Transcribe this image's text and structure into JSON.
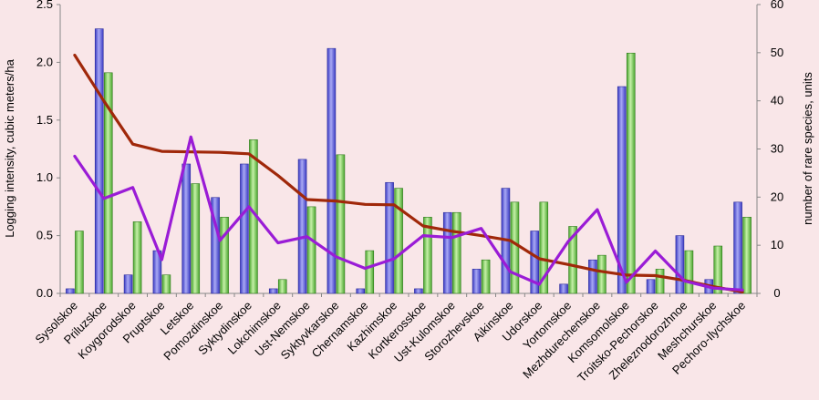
{
  "chart_data": {
    "type": "bar",
    "title": "",
    "xlabel": "",
    "ylabel": "Logging intensity, cubic meters/ha",
    "y2label": "number of rare species, units",
    "ylim": [
      0,
      2.5
    ],
    "y2lim": [
      0,
      60
    ],
    "yticks": [
      "0.0",
      "0.5",
      "1.0",
      "1.5",
      "2.0",
      "2.5"
    ],
    "y2ticks": [
      "0",
      "10",
      "20",
      "30",
      "40",
      "50",
      "60"
    ],
    "grid": false,
    "legend": "none",
    "categories": [
      "Sysolskoe",
      "Priluzskoe",
      "Koygorodskoe",
      "Pruptskoe",
      "Letskoe",
      "Pomozdinskoe",
      "Syktydinskoe",
      "Lokchimskoe",
      "Ust-Nemskoe",
      "Syktyvkarskoe",
      "Chernamskoe",
      "Kazhimskoe",
      "Kortkerosskoe",
      "Ust-Kulomskoe",
      "Storozhevskoe",
      "Aikinskoe",
      "Udorskoe",
      "Yortomskoe",
      "Mezhdurechenskoe",
      "Komsomolskoe",
      "Troitsko-Pechorskoe",
      "Zheleznodorozhnoe",
      "Meshchurskoe",
      "Pechoro-Ilychskoe"
    ],
    "series": [
      {
        "kind": "bar",
        "axis": "left",
        "color": "#5b5bd6",
        "values": [
          0.04,
          2.29,
          0.16,
          0.37,
          1.12,
          0.83,
          1.12,
          0.04,
          1.16,
          2.12,
          0.04,
          0.96,
          0.04,
          0.7,
          0.21,
          0.91,
          0.54,
          0.08,
          0.29,
          1.79,
          0.12,
          0.5,
          0.12,
          0.79
        ]
      },
      {
        "kind": "bar",
        "axis": "left",
        "color": "#7ccf5a",
        "values": [
          0.54,
          1.91,
          0.62,
          0.16,
          0.95,
          0.66,
          1.33,
          0.12,
          0.75,
          1.2,
          0.37,
          0.91,
          0.66,
          0.7,
          0.29,
          0.79,
          0.79,
          0.58,
          0.33,
          2.08,
          0.21,
          0.37,
          0.41,
          0.66
        ]
      },
      {
        "kind": "line",
        "axis": "right",
        "color": "#a0280a",
        "values": [
          49.5,
          40,
          31,
          29.5,
          29.4,
          29.3,
          29,
          24.5,
          19.5,
          19.2,
          18.5,
          18.4,
          14,
          12.9,
          12,
          11,
          7.2,
          6,
          4.7,
          3.8,
          3.7,
          2.7,
          1.4,
          0.3
        ]
      },
      {
        "kind": "line",
        "axis": "right",
        "color": "#9a1cd6",
        "values": [
          28.5,
          19.7,
          22,
          7,
          32.5,
          11,
          18,
          10.5,
          11.8,
          7.6,
          5.2,
          7.2,
          12,
          11.6,
          13.5,
          4.5,
          1.9,
          10.8,
          17.4,
          2.3,
          8.8,
          2.6,
          1.1,
          0.7
        ]
      }
    ]
  }
}
